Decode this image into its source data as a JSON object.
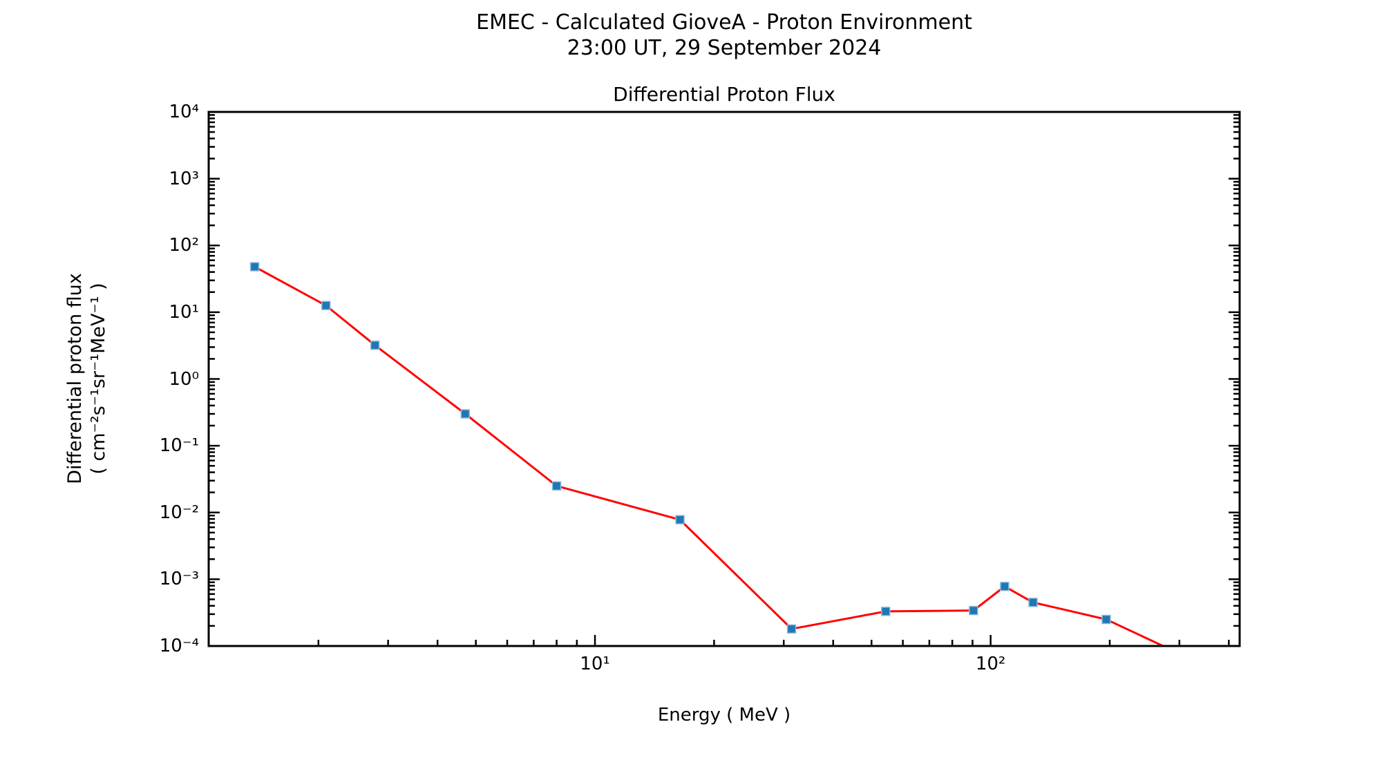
{
  "header": {
    "title_line1": "EMEC - Calculated GioveA - Proton Environment",
    "title_line2": "23:00 UT, 29 September 2024"
  },
  "chart_data": {
    "type": "line",
    "title": "Differential Proton Flux",
    "xlabel": "Energy ( MeV )",
    "ylabel_line1": "Differential proton flux",
    "ylabel_line2": "( cm⁻²s⁻¹sr⁻¹MeV⁻¹ )",
    "x_scale": "log",
    "y_scale": "log",
    "xlim": [
      1.056,
      426
    ],
    "ylim": [
      0.0001,
      10000
    ],
    "grid": false,
    "legend_position": "none",
    "axes": {
      "x_major_ticks": [
        10,
        100
      ],
      "x_tick_labels": [
        "10¹",
        "10²"
      ],
      "y_major_ticks": [
        10000,
        1000,
        100,
        10,
        1,
        0.1,
        0.01,
        0.001,
        0.0001
      ],
      "y_tick_labels": [
        "10⁴",
        "10³",
        "10²",
        "10¹",
        "10⁰",
        "10⁻¹",
        "10⁻²",
        "10⁻³",
        "10⁻⁴"
      ]
    },
    "series": [
      {
        "name": "differential proton flux",
        "line_color": "#ff0000",
        "marker": "square",
        "marker_color": "#1f77b4",
        "marker_edge_color": "#8ebcdc",
        "energy_MeV": [
          1.38,
          2.09,
          2.78,
          4.7,
          8.0,
          16.4,
          31.4,
          54.3,
          90.5,
          108.5,
          128.0,
          196.0,
          334.0
        ],
        "flux": [
          48,
          12.6,
          3.2,
          0.3,
          0.025,
          0.0078,
          0.00018,
          0.00033,
          0.00034,
          0.00078,
          0.00045,
          0.00025,
          5.7e-05
        ]
      }
    ]
  }
}
